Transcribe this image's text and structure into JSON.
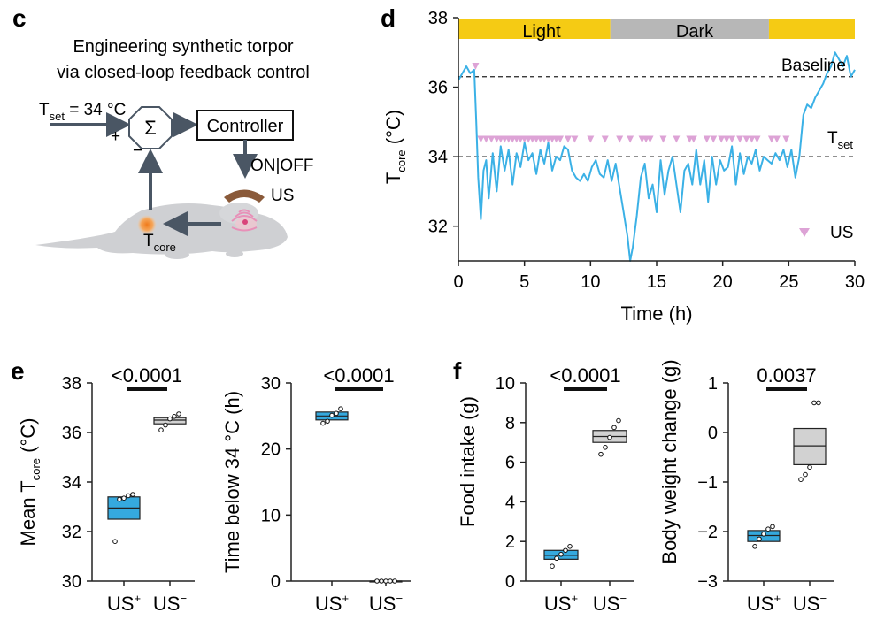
{
  "colors": {
    "blue": "#3bb1e6",
    "blue_box": "#35a9de",
    "grey_box": "#d2d2d2",
    "light_bar": "#f5cb14",
    "dark_bar": "#b7b7b7",
    "us_marker": "#dda3d6",
    "axis": "#222222",
    "arrow": "#4a5664",
    "mouse": "#cfd0d3",
    "core": "#f08a2a",
    "device": "#8a5a3a"
  },
  "panel_c": {
    "label": "c",
    "title_line1": "Engineering synthetic torpor",
    "title_line2": "via closed-loop feedback control",
    "tset_T": "T",
    "tset_sub": "set",
    "tset_rest": " = 34 °C",
    "sum_symbol": "Σ",
    "plus": "+",
    "minus": "−",
    "controller": "Controller",
    "onoff": "ON|OFF",
    "us": "US",
    "tcore_T": "T",
    "tcore_sub": "core"
  },
  "panel_d": {
    "label": "d",
    "ylabel_T": "T",
    "ylabel_sub": "core",
    "ylabel_unit": " (°C)",
    "baseline_label": "Baseline",
    "tset_T": "T",
    "tset_sub": "set",
    "legend_us": "US",
    "light_label": "Light",
    "dark_label": "Dark"
  },
  "panel_e_label": "e",
  "panel_f_label": "f",
  "chart_data": [
    {
      "id": "d",
      "type": "line",
      "xlabel": "Time (h)",
      "ylabel": "T core (°C)",
      "xlim": [
        0,
        30
      ],
      "ylim": [
        31,
        38
      ],
      "xticks": [
        0,
        5,
        10,
        15,
        20,
        25,
        30
      ],
      "yticks": [
        32,
        34,
        36,
        38
      ],
      "baseline": 36.3,
      "tset": 34.0,
      "bands": [
        {
          "label": "Light",
          "from": 0,
          "to": 11.5
        },
        {
          "label": "Dark",
          "from": 11.5,
          "to": 23.5
        },
        {
          "label": "",
          "from": 23.5,
          "to": 30
        }
      ],
      "series": [
        {
          "x": [
            0,
            0.3,
            0.6,
            0.9,
            1.2,
            1.35,
            1.5,
            1.7,
            1.9,
            2.1,
            2.3,
            2.6,
            2.9,
            3.2,
            3.5,
            3.8,
            4.1,
            4.4,
            4.7,
            5.0,
            5.3,
            5.6,
            5.9,
            6.2,
            6.5,
            6.8,
            7.1,
            7.4,
            7.7,
            8.0,
            8.3,
            8.6,
            8.9,
            9.2,
            9.5,
            9.8,
            10.1,
            10.4,
            10.7,
            11.0,
            11.3,
            11.6,
            11.9,
            12.2,
            12.5,
            12.8,
            13.0,
            13.2,
            13.5,
            13.8,
            14.1,
            14.4,
            14.7,
            15.0,
            15.3,
            15.6,
            15.9,
            16.2,
            16.5,
            16.8,
            17.1,
            17.4,
            17.7,
            18.0,
            18.3,
            18.6,
            18.9,
            19.2,
            19.5,
            19.8,
            20.1,
            20.4,
            20.7,
            21.0,
            21.3,
            21.6,
            21.9,
            22.2,
            22.5,
            22.8,
            23.1,
            23.4,
            23.7,
            24.0,
            24.3,
            24.6,
            24.9,
            25.2,
            25.5,
            25.8,
            26.1,
            26.4,
            26.7,
            27.0,
            27.3,
            27.6,
            27.9,
            28.2,
            28.5,
            28.8,
            29.1,
            29.4,
            29.7,
            30.0
          ],
          "y": [
            36.2,
            36.4,
            36.6,
            36.4,
            36.5,
            35.0,
            33.4,
            32.2,
            33.6,
            33.9,
            32.8,
            34.1,
            33.0,
            34.3,
            33.6,
            34.2,
            33.2,
            34.1,
            33.7,
            34.4,
            33.9,
            34.1,
            33.5,
            34.2,
            33.8,
            34.4,
            33.6,
            34.0,
            33.9,
            34.3,
            34.2,
            33.6,
            33.4,
            33.3,
            33.5,
            33.3,
            33.7,
            33.9,
            33.5,
            33.4,
            33.9,
            33.3,
            33.8,
            33.1,
            32.4,
            31.7,
            31.0,
            31.4,
            32.3,
            33.4,
            33.8,
            32.8,
            33.2,
            32.4,
            33.9,
            32.9,
            33.6,
            34.0,
            33.2,
            32.4,
            33.6,
            33.8,
            33.2,
            34.2,
            33.2,
            33.9,
            32.7,
            34.0,
            33.2,
            33.9,
            33.6,
            33.7,
            34.3,
            33.2,
            34.1,
            33.5,
            34.0,
            33.8,
            34.2,
            33.6,
            34.0,
            33.9,
            33.8,
            34.1,
            33.9,
            34.2,
            33.7,
            34.2,
            33.4,
            34.0,
            35.2,
            35.5,
            35.4,
            35.7,
            35.9,
            36.1,
            36.4,
            36.6,
            37.0,
            36.8,
            36.6,
            36.9,
            36.3,
            36.5
          ]
        }
      ],
      "us_times": [
        1.3,
        1.7,
        2.1,
        2.5,
        2.9,
        3.2,
        3.5,
        3.8,
        4.1,
        4.4,
        4.7,
        5.0,
        5.3,
        5.6,
        5.9,
        6.2,
        6.5,
        6.8,
        7.1,
        7.4,
        7.7,
        8.3,
        8.8,
        10.0,
        11.1,
        12.2,
        13.0,
        13.9,
        14.2,
        14.5,
        15.5,
        16.5,
        17.5,
        17.8,
        18.8,
        19.3,
        19.9,
        20.3,
        20.7,
        21.3,
        21.8,
        22.2,
        22.6,
        23.7,
        24.1,
        24.8
      ],
      "us_y": 34.5,
      "us_first_y": 36.6
    },
    {
      "id": "e1",
      "type": "box",
      "ylabel": "Mean T core (°C)",
      "ylim": [
        30,
        38
      ],
      "yticks": [
        30,
        32,
        34,
        36,
        38
      ],
      "categories": [
        "US+",
        "US−"
      ],
      "boxes": [
        {
          "low": 32.5,
          "mid": 32.95,
          "high": 33.4,
          "points": [
            31.6,
            33.3,
            33.35,
            33.45,
            33.5
          ]
        },
        {
          "low": 36.35,
          "mid": 36.5,
          "high": 36.6,
          "points": [
            36.1,
            36.3,
            36.55,
            36.65,
            36.75
          ]
        }
      ],
      "p_value": "<0.0001"
    },
    {
      "id": "e2",
      "type": "box",
      "ylabel": "Time below 34 °C (h)",
      "ylim": [
        0,
        30
      ],
      "yticks": [
        0,
        10,
        20,
        30
      ],
      "categories": [
        "US+",
        "US−"
      ],
      "boxes": [
        {
          "low": 24.4,
          "mid": 25.0,
          "high": 25.6,
          "points": [
            23.9,
            24.2,
            25.1,
            25.4,
            26.1
          ]
        },
        {
          "low": 0,
          "mid": 0,
          "high": 0,
          "points": [
            0,
            0,
            0,
            0,
            0
          ]
        }
      ],
      "p_value": "<0.0001"
    },
    {
      "id": "f1",
      "type": "box",
      "ylabel": "Food intake (g)",
      "ylim": [
        0,
        10
      ],
      "yticks": [
        0,
        2,
        4,
        6,
        8,
        10
      ],
      "categories": [
        "US+",
        "US−"
      ],
      "boxes": [
        {
          "low": 1.1,
          "mid": 1.3,
          "high": 1.55,
          "points": [
            0.75,
            1.15,
            1.35,
            1.55,
            1.75
          ]
        },
        {
          "low": 7.0,
          "mid": 7.3,
          "high": 7.6,
          "points": [
            6.4,
            6.75,
            7.25,
            7.75,
            8.1
          ]
        }
      ],
      "p_value": "<0.0001"
    },
    {
      "id": "f2",
      "type": "box",
      "ylabel": "Body weight change (g)",
      "ylim": [
        -3,
        1
      ],
      "yticks": [
        -3,
        -2,
        -1,
        0,
        1
      ],
      "categories": [
        "US+",
        "US−"
      ],
      "boxes": [
        {
          "low": -2.2,
          "mid": -2.08,
          "high": -1.98,
          "points": [
            -2.3,
            -2.15,
            -2.05,
            -1.95,
            -1.9
          ]
        },
        {
          "low": -0.65,
          "mid": -0.27,
          "high": 0.08,
          "points": [
            -0.95,
            -0.85,
            -0.7,
            0.6,
            0.6
          ]
        }
      ],
      "p_value": "0.0037"
    }
  ]
}
